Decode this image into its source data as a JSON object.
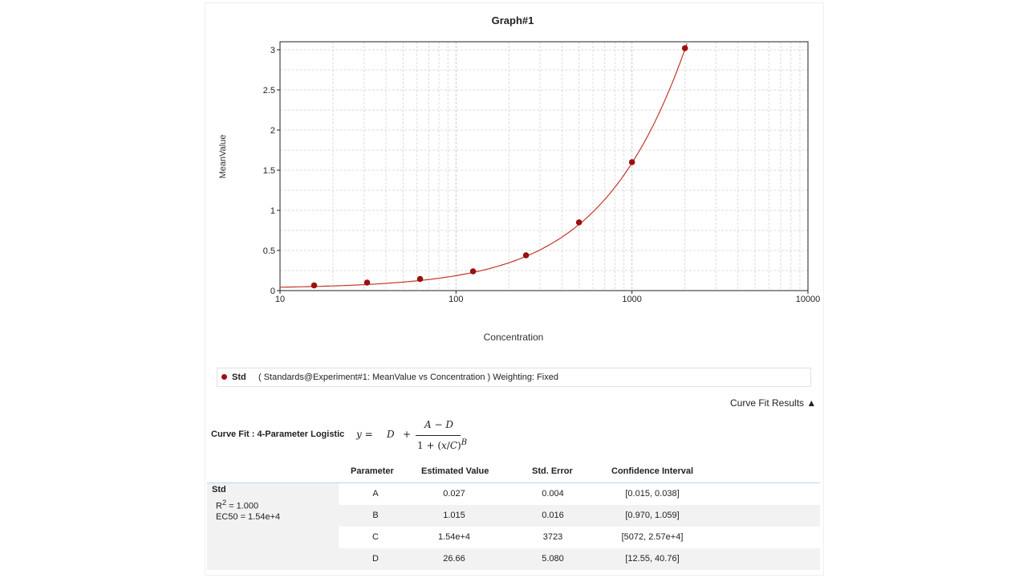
{
  "chart_data": {
    "type": "scatter",
    "title": "Graph#1",
    "xlabel": "Concentration",
    "ylabel": "MeanValue",
    "xscale": "log",
    "xlim": [
      10,
      10000
    ],
    "ylim": [
      0,
      3.1
    ],
    "xticks": [
      "10",
      "100",
      "1000",
      "10000"
    ],
    "yticks": [
      "0",
      "0.5",
      "1",
      "1.5",
      "2",
      "2.5",
      "3"
    ],
    "grid": true,
    "series": [
      {
        "name": "Std",
        "color": "#9b1010",
        "x": [
          15.625,
          31.25,
          62.5,
          125,
          250,
          500,
          1000,
          2000
        ],
        "y": [
          0.065,
          0.1,
          0.145,
          0.24,
          0.44,
          0.85,
          1.6,
          3.02
        ]
      }
    ],
    "fit": {
      "model": "4-Parameter Logistic",
      "A": 0.027,
      "B": 1.015,
      "C": 15400,
      "D": 26.66,
      "color": "#c0392b"
    }
  },
  "legend": {
    "name": "Std",
    "description": "( Standards@Experiment#1: MeanValue vs Concentration )  Weighting: Fixed"
  },
  "results_toggle": "Curve Fit Results ▲",
  "curve_fit": {
    "label": "Curve Fit : 4-Parameter Logistic",
    "formula": {
      "lhs": "y =",
      "d": "D",
      "plus": "+",
      "numerator": "A − D",
      "denominator_prefix": "1 + (",
      "denominator_x": "x",
      "slash": "/",
      "denominator_c": "C",
      "denominator_suffix": ")",
      "exponent": "B"
    }
  },
  "table": {
    "headers": [
      "Parameter",
      "Estimated Value",
      "Std. Error",
      "Confidence Interval"
    ],
    "group": {
      "name": "Std",
      "r2_label": "R",
      "r2_sup": "2",
      "r2_value": " = 1.000",
      "ec50": "EC50 = 1.54e+4"
    },
    "rows": [
      [
        "A",
        "0.027",
        "0.004",
        "[0.015, 0.038]"
      ],
      [
        "B",
        "1.015",
        "0.016",
        "[0.970, 1.059]"
      ],
      [
        "C",
        "1.54e+4",
        "3723",
        "[5072, 2.57e+4]"
      ],
      [
        "D",
        "26.66",
        "5.080",
        "[12.55, 40.76]"
      ]
    ]
  }
}
